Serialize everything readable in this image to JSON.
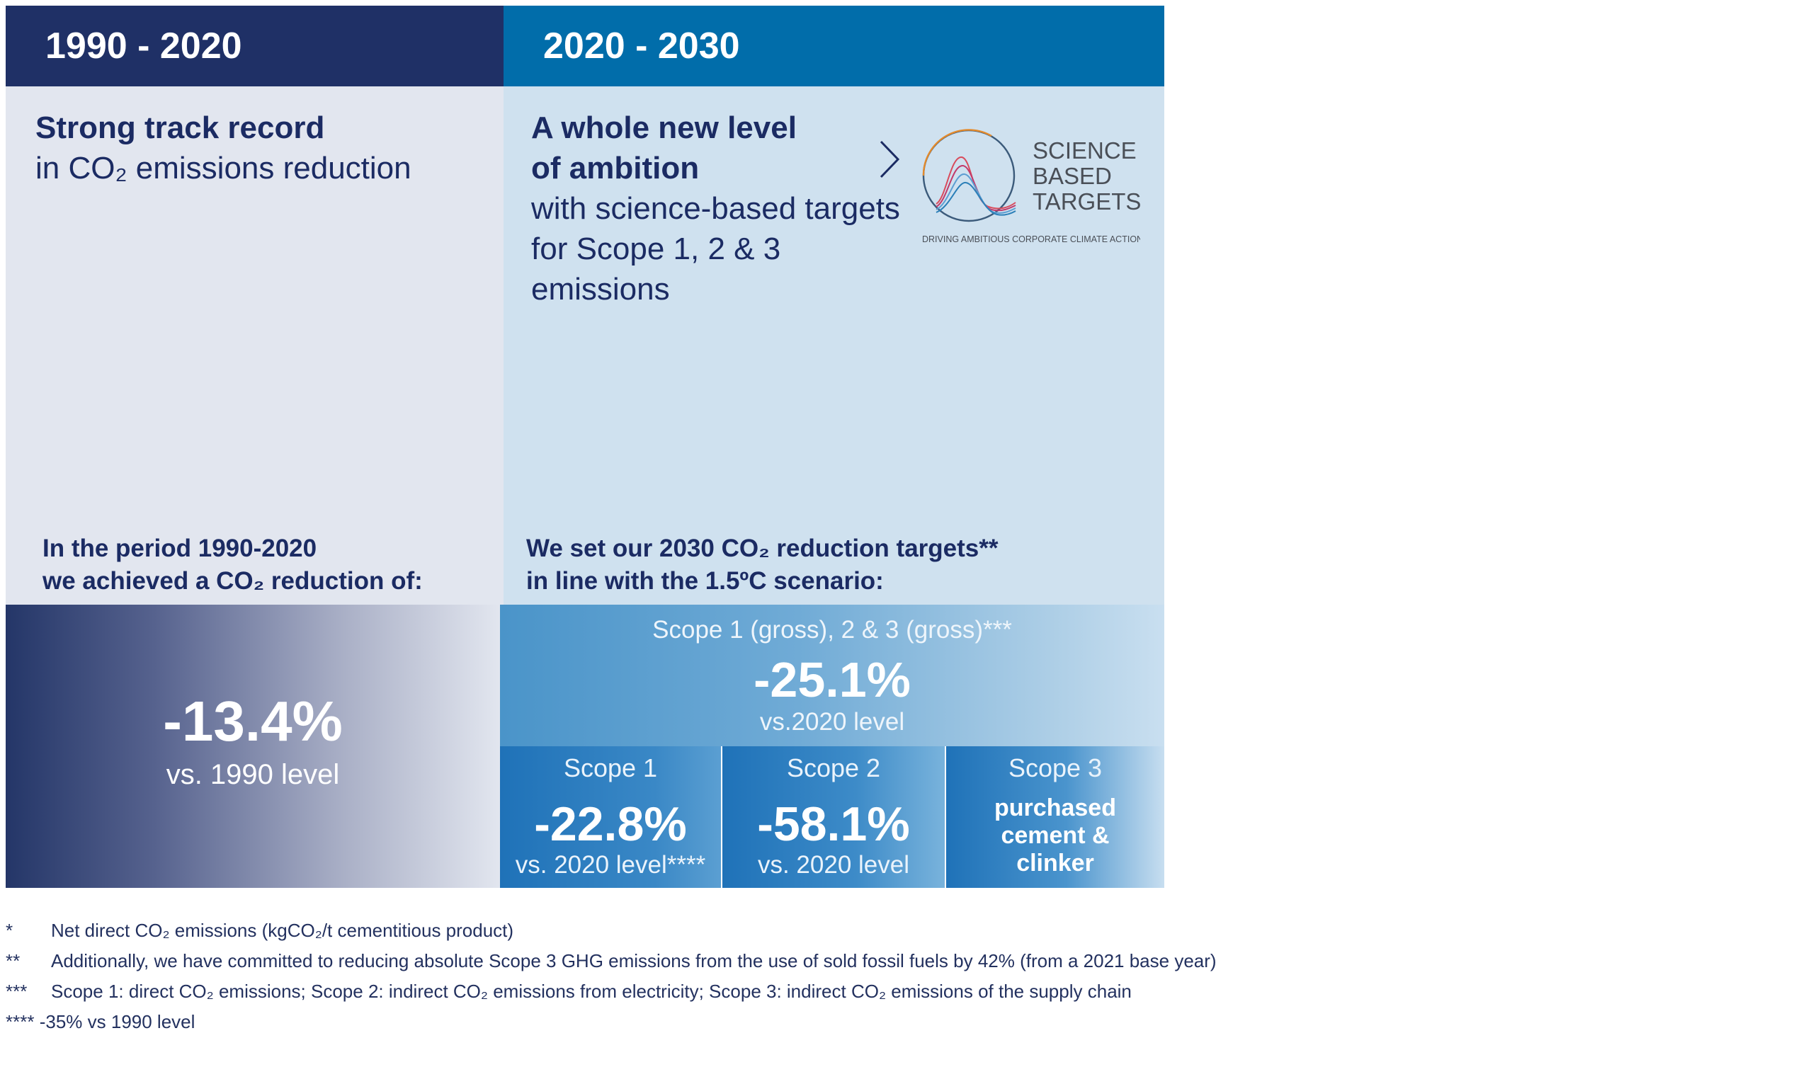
{
  "headers": {
    "left": "1990 - 2020",
    "right": "2020 - 2030"
  },
  "left_panel": {
    "title_bold": "Strong track record",
    "title_normal": "in CO₂ emissions reduction",
    "period_line1": "In the period 1990-2020",
    "period_line2": "we achieved a CO₂ reduction of:",
    "stat_value": "-13.4%",
    "stat_caption": "vs. 1990 level"
  },
  "right_panel": {
    "title_bold_1": "A whole new level",
    "title_bold_2": "of ambition",
    "title_normal_1": "with science-based targets",
    "title_normal_2": "for Scope 1, 2 & 3 emissions",
    "logo": {
      "line1": "SCIENCE",
      "line2": "BASED",
      "line3": "TARGETS",
      "tagline": "DRIVING AMBITIOUS CORPORATE CLIMATE ACTION"
    },
    "period_line1": "We set our 2030 CO₂ reduction targets**",
    "period_line2": "in line with the 1.5ºC scenario:",
    "total": {
      "label": "Scope 1 (gross), 2 & 3 (gross)***",
      "value": "-25.1%",
      "caption": "vs.2020 level"
    },
    "scopes": [
      {
        "label": "Scope 1",
        "value": "-22.8%",
        "caption": "vs. 2020 level****"
      },
      {
        "label": "Scope 2",
        "value": "-58.1%",
        "caption": "vs. 2020 level"
      },
      {
        "label": "Scope 3",
        "text_1": "purchased",
        "text_2": "cement &",
        "text_3": "clinker"
      }
    ]
  },
  "footnotes": [
    {
      "marker": "*",
      "text": "Net direct CO₂ emissions (kgCO₂/t cementitious product)"
    },
    {
      "marker": "**",
      "text": "Additionally, we have committed  to reducing absolute Scope 3 GHG emissions from the use of sold fossil fuels by 42% (from a 2021 base year)"
    },
    {
      "marker": "***",
      "text": "Scope 1: direct CO₂ emissions; Scope 2: indirect CO₂ emissions from electricity; Scope 3: indirect CO₂ emissions of the supply chain"
    },
    {
      "marker": "****",
      "text": "-35% vs 1990 level"
    }
  ],
  "colors": {
    "navy": "#1f3066",
    "blue": "#016daa",
    "left_bg": "#e2e6ef",
    "right_bg": "#cfe1ef"
  }
}
